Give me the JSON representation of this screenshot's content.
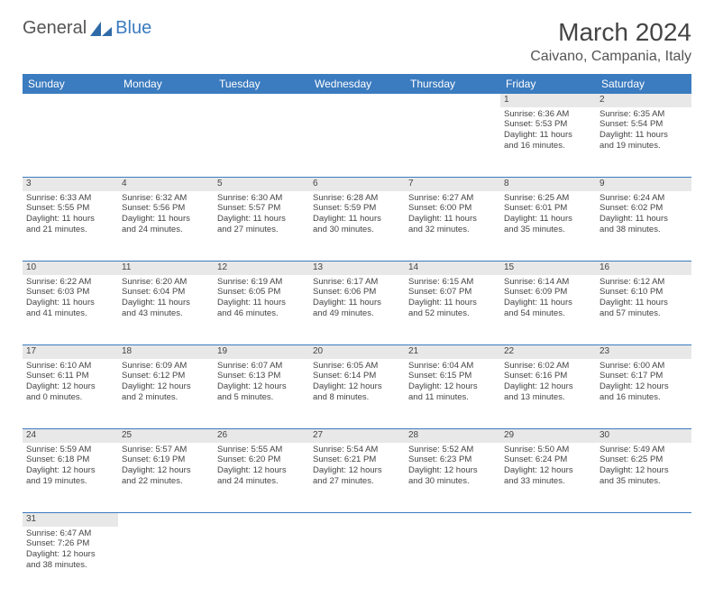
{
  "brand": {
    "part1": "General",
    "part2": "Blue"
  },
  "title": "March 2024",
  "location": "Caivano, Campania, Italy",
  "colors": {
    "header_bg": "#3b7bbf",
    "daynum_bg": "#e8e8e8",
    "row_border": "#3b7bbf"
  },
  "weekdays": [
    "Sunday",
    "Monday",
    "Tuesday",
    "Wednesday",
    "Thursday",
    "Friday",
    "Saturday"
  ],
  "weeks": [
    [
      null,
      null,
      null,
      null,
      null,
      {
        "n": "1",
        "sr": "Sunrise: 6:36 AM",
        "ss": "Sunset: 5:53 PM",
        "d1": "Daylight: 11 hours",
        "d2": "and 16 minutes."
      },
      {
        "n": "2",
        "sr": "Sunrise: 6:35 AM",
        "ss": "Sunset: 5:54 PM",
        "d1": "Daylight: 11 hours",
        "d2": "and 19 minutes."
      }
    ],
    [
      {
        "n": "3",
        "sr": "Sunrise: 6:33 AM",
        "ss": "Sunset: 5:55 PM",
        "d1": "Daylight: 11 hours",
        "d2": "and 21 minutes."
      },
      {
        "n": "4",
        "sr": "Sunrise: 6:32 AM",
        "ss": "Sunset: 5:56 PM",
        "d1": "Daylight: 11 hours",
        "d2": "and 24 minutes."
      },
      {
        "n": "5",
        "sr": "Sunrise: 6:30 AM",
        "ss": "Sunset: 5:57 PM",
        "d1": "Daylight: 11 hours",
        "d2": "and 27 minutes."
      },
      {
        "n": "6",
        "sr": "Sunrise: 6:28 AM",
        "ss": "Sunset: 5:59 PM",
        "d1": "Daylight: 11 hours",
        "d2": "and 30 minutes."
      },
      {
        "n": "7",
        "sr": "Sunrise: 6:27 AM",
        "ss": "Sunset: 6:00 PM",
        "d1": "Daylight: 11 hours",
        "d2": "and 32 minutes."
      },
      {
        "n": "8",
        "sr": "Sunrise: 6:25 AM",
        "ss": "Sunset: 6:01 PM",
        "d1": "Daylight: 11 hours",
        "d2": "and 35 minutes."
      },
      {
        "n": "9",
        "sr": "Sunrise: 6:24 AM",
        "ss": "Sunset: 6:02 PM",
        "d1": "Daylight: 11 hours",
        "d2": "and 38 minutes."
      }
    ],
    [
      {
        "n": "10",
        "sr": "Sunrise: 6:22 AM",
        "ss": "Sunset: 6:03 PM",
        "d1": "Daylight: 11 hours",
        "d2": "and 41 minutes."
      },
      {
        "n": "11",
        "sr": "Sunrise: 6:20 AM",
        "ss": "Sunset: 6:04 PM",
        "d1": "Daylight: 11 hours",
        "d2": "and 43 minutes."
      },
      {
        "n": "12",
        "sr": "Sunrise: 6:19 AM",
        "ss": "Sunset: 6:05 PM",
        "d1": "Daylight: 11 hours",
        "d2": "and 46 minutes."
      },
      {
        "n": "13",
        "sr": "Sunrise: 6:17 AM",
        "ss": "Sunset: 6:06 PM",
        "d1": "Daylight: 11 hours",
        "d2": "and 49 minutes."
      },
      {
        "n": "14",
        "sr": "Sunrise: 6:15 AM",
        "ss": "Sunset: 6:07 PM",
        "d1": "Daylight: 11 hours",
        "d2": "and 52 minutes."
      },
      {
        "n": "15",
        "sr": "Sunrise: 6:14 AM",
        "ss": "Sunset: 6:09 PM",
        "d1": "Daylight: 11 hours",
        "d2": "and 54 minutes."
      },
      {
        "n": "16",
        "sr": "Sunrise: 6:12 AM",
        "ss": "Sunset: 6:10 PM",
        "d1": "Daylight: 11 hours",
        "d2": "and 57 minutes."
      }
    ],
    [
      {
        "n": "17",
        "sr": "Sunrise: 6:10 AM",
        "ss": "Sunset: 6:11 PM",
        "d1": "Daylight: 12 hours",
        "d2": "and 0 minutes."
      },
      {
        "n": "18",
        "sr": "Sunrise: 6:09 AM",
        "ss": "Sunset: 6:12 PM",
        "d1": "Daylight: 12 hours",
        "d2": "and 2 minutes."
      },
      {
        "n": "19",
        "sr": "Sunrise: 6:07 AM",
        "ss": "Sunset: 6:13 PM",
        "d1": "Daylight: 12 hours",
        "d2": "and 5 minutes."
      },
      {
        "n": "20",
        "sr": "Sunrise: 6:05 AM",
        "ss": "Sunset: 6:14 PM",
        "d1": "Daylight: 12 hours",
        "d2": "and 8 minutes."
      },
      {
        "n": "21",
        "sr": "Sunrise: 6:04 AM",
        "ss": "Sunset: 6:15 PM",
        "d1": "Daylight: 12 hours",
        "d2": "and 11 minutes."
      },
      {
        "n": "22",
        "sr": "Sunrise: 6:02 AM",
        "ss": "Sunset: 6:16 PM",
        "d1": "Daylight: 12 hours",
        "d2": "and 13 minutes."
      },
      {
        "n": "23",
        "sr": "Sunrise: 6:00 AM",
        "ss": "Sunset: 6:17 PM",
        "d1": "Daylight: 12 hours",
        "d2": "and 16 minutes."
      }
    ],
    [
      {
        "n": "24",
        "sr": "Sunrise: 5:59 AM",
        "ss": "Sunset: 6:18 PM",
        "d1": "Daylight: 12 hours",
        "d2": "and 19 minutes."
      },
      {
        "n": "25",
        "sr": "Sunrise: 5:57 AM",
        "ss": "Sunset: 6:19 PM",
        "d1": "Daylight: 12 hours",
        "d2": "and 22 minutes."
      },
      {
        "n": "26",
        "sr": "Sunrise: 5:55 AM",
        "ss": "Sunset: 6:20 PM",
        "d1": "Daylight: 12 hours",
        "d2": "and 24 minutes."
      },
      {
        "n": "27",
        "sr": "Sunrise: 5:54 AM",
        "ss": "Sunset: 6:21 PM",
        "d1": "Daylight: 12 hours",
        "d2": "and 27 minutes."
      },
      {
        "n": "28",
        "sr": "Sunrise: 5:52 AM",
        "ss": "Sunset: 6:23 PM",
        "d1": "Daylight: 12 hours",
        "d2": "and 30 minutes."
      },
      {
        "n": "29",
        "sr": "Sunrise: 5:50 AM",
        "ss": "Sunset: 6:24 PM",
        "d1": "Daylight: 12 hours",
        "d2": "and 33 minutes."
      },
      {
        "n": "30",
        "sr": "Sunrise: 5:49 AM",
        "ss": "Sunset: 6:25 PM",
        "d1": "Daylight: 12 hours",
        "d2": "and 35 minutes."
      }
    ],
    [
      {
        "n": "31",
        "sr": "Sunrise: 6:47 AM",
        "ss": "Sunset: 7:26 PM",
        "d1": "Daylight: 12 hours",
        "d2": "and 38 minutes."
      },
      null,
      null,
      null,
      null,
      null,
      null
    ]
  ]
}
